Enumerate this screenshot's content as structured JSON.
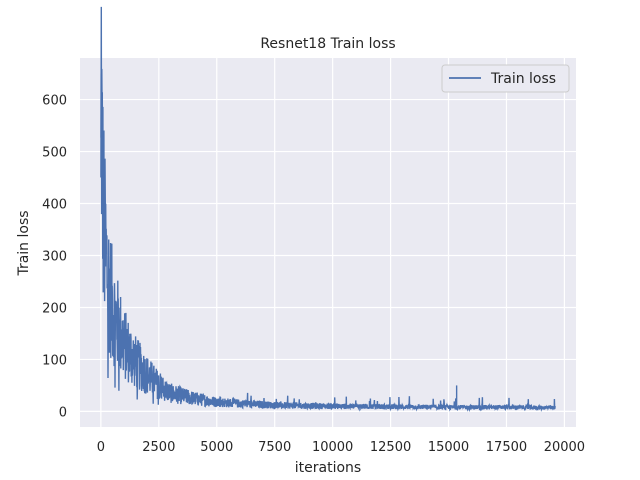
{
  "chart_data": {
    "type": "line",
    "title": "Resnet18 Train loss",
    "xlabel": "iterations",
    "ylabel": "Train loss",
    "xlim": [
      -900,
      20500
    ],
    "ylim": [
      -30,
      680
    ],
    "xticks": [
      0,
      2500,
      5000,
      7500,
      10000,
      12500,
      15000,
      17500,
      20000
    ],
    "xtick_labels": [
      "0",
      "2500",
      "5000",
      "7500",
      "10000",
      "12500",
      "15000",
      "17500",
      "20000"
    ],
    "yticks": [
      0,
      100,
      200,
      300,
      400,
      500,
      600
    ],
    "ytick_labels": [
      "0",
      "100",
      "200",
      "300",
      "400",
      "500",
      "600"
    ],
    "grid": true,
    "legend": {
      "position": "upper-right",
      "entries": [
        "Train loss"
      ]
    },
    "colors": {
      "line": "#4c72b0",
      "plot_bg": "#eaeaf2",
      "grid": "#ffffff"
    },
    "series": [
      {
        "name": "Train loss",
        "description_points": {
          "x": [
            0,
            20,
            50,
            100,
            150,
            200,
            300,
            400,
            500,
            700,
            1000,
            1500,
            2000,
            2500,
            3000,
            4000,
            5000,
            6000,
            7500,
            10000,
            12500,
            15000,
            17500,
            19600
          ],
          "y": [
            450,
            650,
            480,
            400,
            350,
            300,
            260,
            230,
            200,
            170,
            130,
            95,
            70,
            50,
            35,
            25,
            18,
            15,
            12,
            10,
            9,
            8,
            8,
            7
          ]
        },
        "annotations_spikes": [
          {
            "x": 15350,
            "y": 50
          }
        ]
      }
    ]
  }
}
